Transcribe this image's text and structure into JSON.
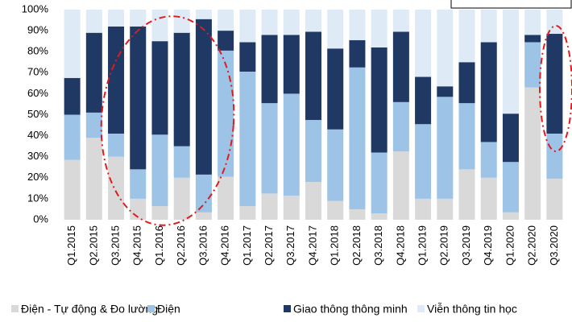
{
  "chart_data": {
    "type": "stacked_bar",
    "categories": [
      "Q1.2015",
      "Q2.2015",
      "Q3.2015",
      "Q4.2015",
      "Q1.2016",
      "Q2.2016",
      "Q3.2016",
      "Q4.2016",
      "Q1.2017",
      "Q2.2017",
      "Q3.2017",
      "Q4.2017",
      "Q1.2018",
      "Q2.2018",
      "Q3.2018",
      "Q4.2018",
      "Q1.2019",
      "Q2.2019",
      "Q3.2019",
      "Q4.2019",
      "Q1.2020",
      "Q2.2020",
      "Q3.2020"
    ],
    "series": [
      {
        "name": "Điện - Tự động & Đo lường",
        "color": "#d9d9d9",
        "values": [
          28.5,
          39,
          30,
          10,
          6.5,
          20,
          3.5,
          20.5,
          6.5,
          12.5,
          11.5,
          18,
          9,
          5,
          3,
          32.5,
          10,
          10,
          24,
          20,
          3.5,
          63,
          19.5
        ]
      },
      {
        "name": "Điện",
        "color": "#9dc3e6",
        "values": [
          21.5,
          12,
          11,
          14,
          34,
          15,
          18,
          60,
          64,
          43,
          48.5,
          29.5,
          34,
          67.5,
          29,
          23.5,
          35.5,
          48.5,
          31.5,
          17,
          24,
          21.5,
          21.5
        ]
      },
      {
        "name": "Giao thông thông minh",
        "color": "#203864",
        "values": [
          17.5,
          38,
          51,
          68,
          44.5,
          54,
          74,
          9.5,
          14,
          32.5,
          28,
          42,
          38.5,
          13,
          50,
          33.5,
          22.5,
          5,
          19.5,
          47.5,
          23,
          3.5,
          47.5
        ]
      },
      {
        "name": "Viễn thông tin học",
        "color": "#deebf7",
        "values": [
          32.5,
          11,
          8,
          8,
          15,
          11,
          4.5,
          10,
          15.5,
          12,
          12,
          10.5,
          18.5,
          14.5,
          18,
          10.5,
          32,
          36.5,
          25,
          15.5,
          49.5,
          12,
          11.5
        ]
      }
    ],
    "ylim": [
      0,
      100
    ],
    "yticks": [
      {
        "value": 0,
        "label": "0%"
      },
      {
        "value": 10,
        "label": "10%"
      },
      {
        "value": 20,
        "label": "20%"
      },
      {
        "value": 30,
        "label": "30%"
      },
      {
        "value": 40,
        "label": "40%"
      },
      {
        "value": 50,
        "label": "50%"
      },
      {
        "value": 60,
        "label": "60%"
      },
      {
        "value": 70,
        "label": "70%"
      },
      {
        "value": 80,
        "label": "80%"
      },
      {
        "value": 90,
        "label": "90%"
      },
      {
        "value": 100,
        "label": "100%"
      }
    ]
  }
}
